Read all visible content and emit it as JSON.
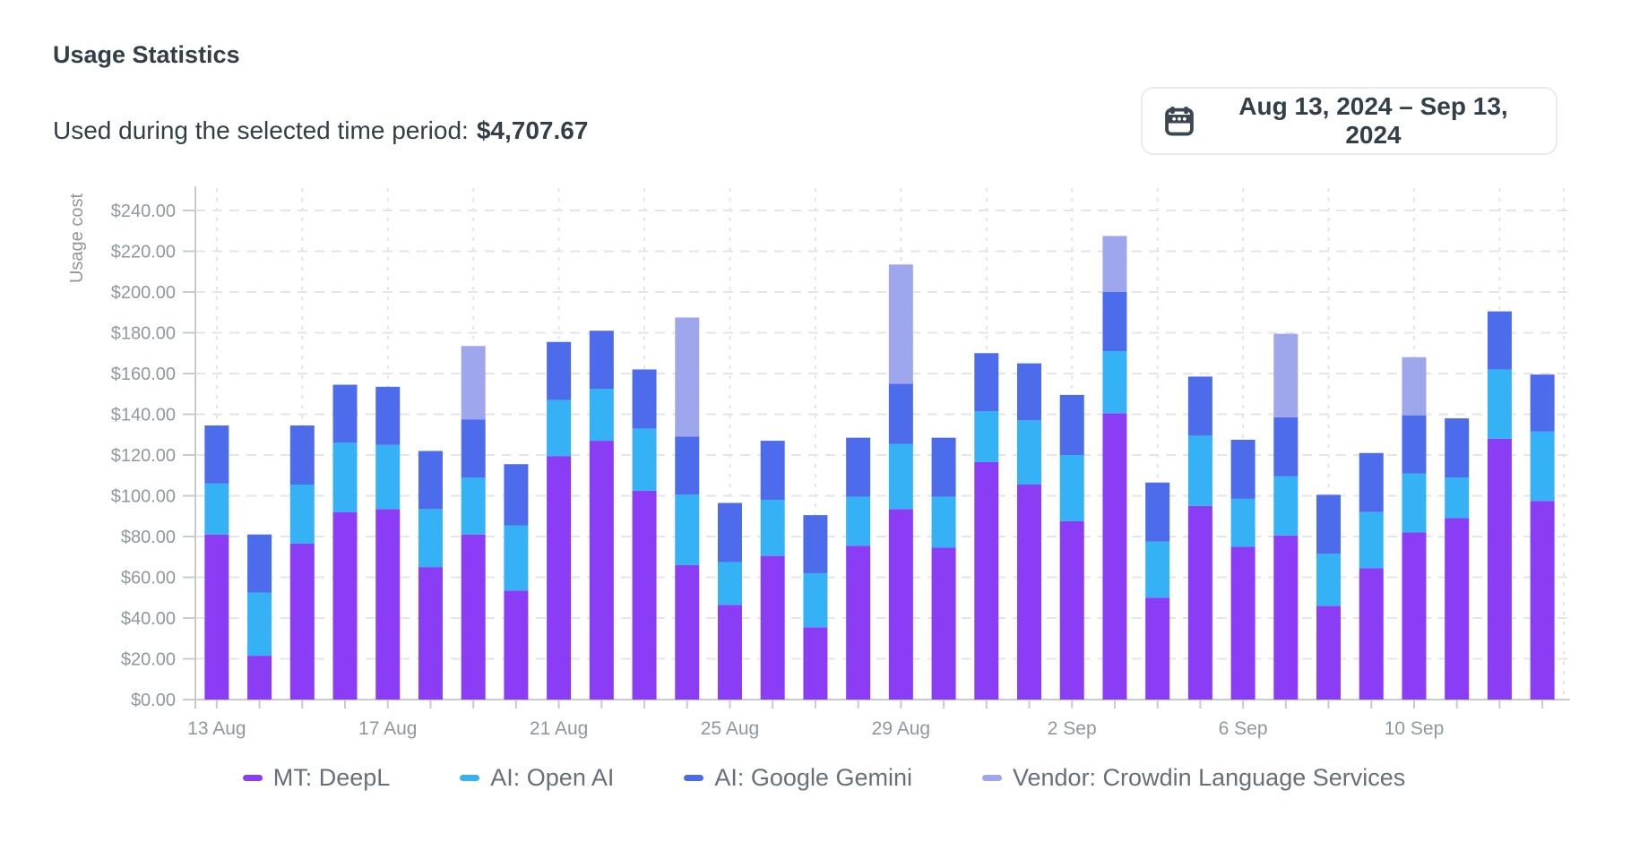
{
  "header": {
    "title": "Usage Statistics",
    "period_label": "Used during the selected time period:",
    "period_value": "$4,707.67"
  },
  "date_picker": {
    "icon": "calendar-icon",
    "value": "Aug 13, 2024 – Sep 13, 2024"
  },
  "colors": {
    "deepl": "#8b3df6",
    "openai": "#35b1f6",
    "gemini": "#4d6ceb",
    "vendor": "#9ea7ec",
    "axis": "#c7cbd1",
    "grid": "#e3e5e8",
    "tick_text": "#8f97a1",
    "legend_text": "#66707b"
  },
  "chart_data": {
    "type": "bar",
    "stacked": true,
    "title": "",
    "xlabel": "",
    "ylabel": "Usage cost",
    "ylim": [
      0,
      240
    ],
    "ytick_step": 20,
    "ytick_prefix": "$",
    "grid": true,
    "legend_position": "bottom",
    "xtick_every": 4,
    "xticks_shown": [
      "13 Aug",
      "17 Aug",
      "21 Aug",
      "25 Aug",
      "29 Aug",
      "2 Sep",
      "6 Sep",
      "10 Sep"
    ],
    "x": [
      "13 Aug",
      "14 Aug",
      "15 Aug",
      "16 Aug",
      "17 Aug",
      "18 Aug",
      "19 Aug",
      "20 Aug",
      "21 Aug",
      "22 Aug",
      "23 Aug",
      "24 Aug",
      "25 Aug",
      "26 Aug",
      "27 Aug",
      "28 Aug",
      "29 Aug",
      "30 Aug",
      "31 Aug",
      "1 Sep",
      "2 Sep",
      "3 Sep",
      "4 Sep",
      "5 Sep",
      "6 Sep",
      "7 Sep",
      "8 Sep",
      "9 Sep",
      "10 Sep",
      "11 Sep",
      "12 Sep",
      "13 Sep"
    ],
    "series": [
      {
        "name": "MT: DeepL",
        "color": "#8b3df6",
        "values": [
          81,
          21.5,
          76.5,
          92,
          93.5,
          65,
          81,
          53.5,
          119.5,
          127,
          102.5,
          66,
          46.5,
          70.5,
          35.5,
          75.5,
          93.5,
          74.5,
          116.5,
          105.5,
          87.5,
          140.5,
          50,
          95,
          75,
          80.5,
          46,
          64.5,
          82,
          89,
          128,
          97.5
        ]
      },
      {
        "name": "AI: Open AI",
        "color": "#35b1f6",
        "values": [
          25,
          31,
          29,
          34,
          31.5,
          28.5,
          28,
          32,
          27.5,
          25.5,
          30.5,
          34.5,
          21,
          27.5,
          26.5,
          24,
          32,
          25,
          25,
          31.5,
          32.5,
          30.5,
          27.5,
          34.5,
          23.5,
          29,
          25.5,
          27.5,
          29,
          20,
          34,
          34
        ]
      },
      {
        "name": "AI: Google Gemini",
        "color": "#4d6ceb",
        "values": [
          28.5,
          28.5,
          29,
          28.5,
          28.5,
          28.5,
          28.5,
          30,
          28.5,
          28.5,
          29,
          28.5,
          29,
          29,
          28.5,
          29,
          29.5,
          29,
          28.5,
          28,
          29.5,
          29,
          29,
          29,
          29,
          29,
          29,
          29,
          28.5,
          29,
          28.5,
          28
        ]
      },
      {
        "name": "Vendor: Crowdin Language Services",
        "color": "#9ea7ec",
        "values": [
          0,
          0,
          0,
          0,
          0,
          0,
          36,
          0,
          0,
          0,
          0,
          58.5,
          0,
          0,
          0,
          0,
          58.5,
          0,
          0,
          0,
          0,
          27.5,
          0,
          0,
          0,
          41,
          0,
          0,
          28.5,
          0,
          0,
          0
        ]
      }
    ]
  }
}
